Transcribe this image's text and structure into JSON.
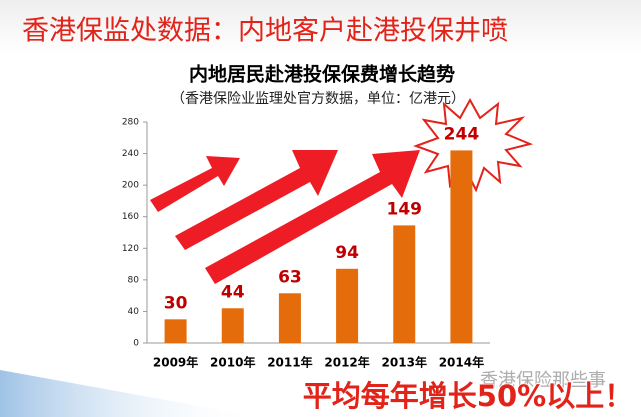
{
  "header": "香港保监处数据：内地客户赴港投保井喷",
  "chart_data": {
    "type": "bar",
    "title": "内地居民赴港投保保费增长趋势",
    "subtitle": "（香港保险业监理处官方数据，单位：亿港元）",
    "categories": [
      "2009年",
      "2010年",
      "2011年",
      "2012年",
      "2013年",
      "2014年"
    ],
    "values": [
      30,
      44,
      63,
      94,
      149,
      244
    ],
    "color": "#e46c0a",
    "label_color": "#c00000",
    "ylim": [
      0,
      280
    ],
    "yticks": [
      0,
      40,
      80,
      120,
      160,
      200,
      240,
      280
    ],
    "grid": false
  },
  "banner": "平均每年增长50%以上！",
  "watermark": "香港保险那些事"
}
